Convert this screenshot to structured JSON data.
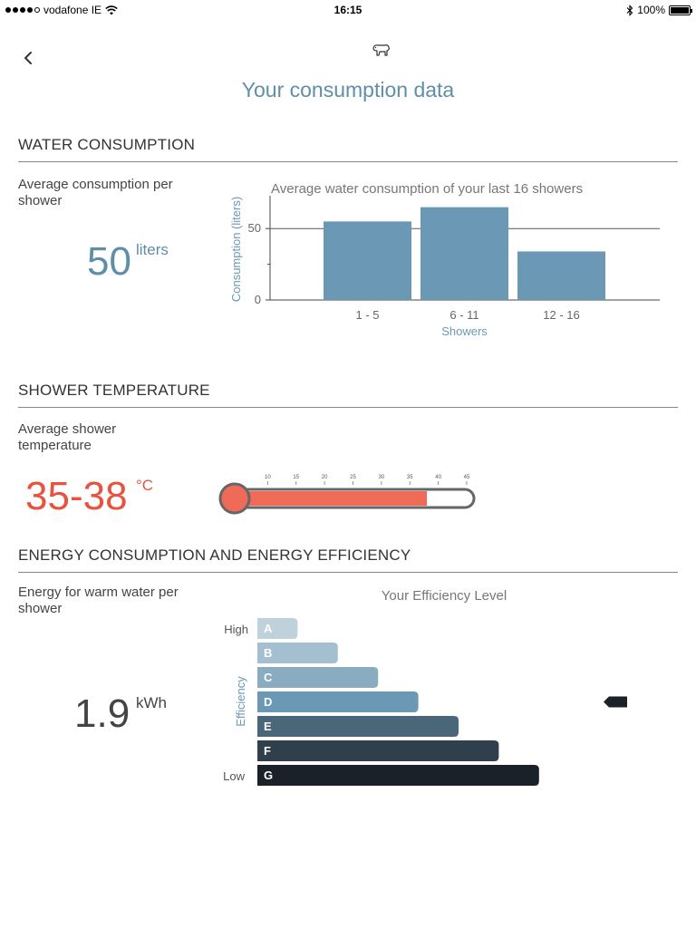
{
  "status_bar": {
    "carrier": "vodafone IE",
    "time": "16:15",
    "battery": "100%"
  },
  "header": {
    "title": "Your consumption data"
  },
  "icons": {
    "back": "chevron-left-icon",
    "logo": "bear-logo-icon",
    "wifi": "wifi-icon",
    "bluetooth": "bluetooth-icon",
    "battery": "battery-icon"
  },
  "water": {
    "section_title": "WATER CONSUMPTION",
    "label": "Average consumption per shower",
    "value": "50",
    "unit": "liters",
    "value_color": "#5f8ea8"
  },
  "temperature": {
    "section_title": "SHOWER TEMPERATURE",
    "label": "Average shower temperature",
    "value": "35-38",
    "unit": "°C",
    "value_color": "#e8533f",
    "ticks": [
      "10",
      "15",
      "20",
      "25",
      "30",
      "35",
      "40",
      "45"
    ],
    "scale_min": 5,
    "scale_max": 45,
    "fill_value": 38
  },
  "energy": {
    "section_title": "ENERGY CONSUMPTION AND ENERGY EFFICIENCY",
    "label": "Energy for warm water per shower",
    "value": "1.9",
    "unit": "kWh"
  },
  "chart_data": [
    {
      "type": "bar",
      "title": "Average water consumption of your last 16 showers",
      "xlabel": "Showers",
      "ylabel": "Consumption (liters)",
      "categories": [
        "1 - 5",
        "6 - 11",
        "12 - 16"
      ],
      "values": [
        55,
        65,
        34
      ],
      "ylim": [
        0,
        73
      ],
      "yticks": [
        0,
        50
      ],
      "ytick_labels": [
        "0",
        "50"
      ],
      "grid": true,
      "color": "#6b98b4"
    },
    {
      "type": "bar",
      "orientation": "horizontal",
      "title": "Your Efficiency Level",
      "ylabel": "Efficiency",
      "axis_top_label": "High",
      "axis_bottom_label": "Low",
      "categories": [
        "A",
        "B",
        "C",
        "D",
        "E",
        "F",
        "G"
      ],
      "values": [
        1,
        2,
        3,
        4,
        5,
        6,
        7
      ],
      "colors": [
        "#bfd2dc",
        "#a4bfcf",
        "#89acc0",
        "#6b98b4",
        "#4a6679",
        "#2f3f4b",
        "#1b2128"
      ],
      "current_level": "D"
    }
  ]
}
